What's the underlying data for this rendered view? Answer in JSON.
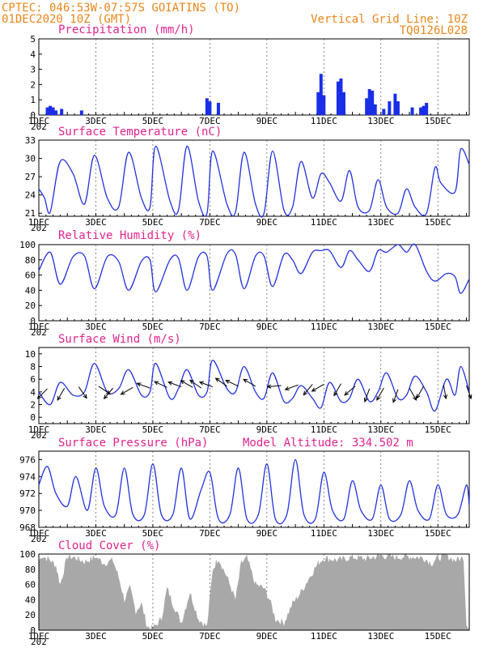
{
  "header": {
    "line1": "CPTEC:   046:53W-07:57S   GOIATINS (TO)",
    "line2": "01DEC2020 10Z (GMT)",
    "right1": "Vertical Grid Line: 10Z",
    "right2": "TQ0126L028"
  },
  "x_axis": {
    "tick_labels": [
      "1DEC",
      "3DEC",
      "5DEC",
      "7DEC",
      "9DEC",
      "11DEC",
      "13DEC",
      "15DEC"
    ],
    "tick_days": [
      1,
      3,
      5,
      7,
      9,
      11,
      13,
      15
    ],
    "range": [
      1,
      16.1
    ],
    "year_stub": "202"
  },
  "colors": {
    "line": "#2233dd",
    "bars": "#1a2ee8",
    "cloud": "#a8a8a8",
    "header": "#e8861a",
    "title": "#e0238f",
    "grid": "#000000"
  },
  "chart_data": [
    {
      "type": "bar",
      "title": "Precipitation (mm/h)",
      "ylim": [
        0,
        5
      ],
      "yticks": [
        "0",
        "1",
        "2",
        "3",
        "4",
        "5"
      ],
      "x": [
        1.3,
        1.4,
        1.5,
        1.6,
        1.8,
        2.5,
        6.9,
        7.0,
        7.3,
        10.8,
        10.9,
        11.0,
        11.5,
        11.6,
        11.7,
        12.5,
        12.6,
        12.7,
        12.8,
        13.1,
        13.3,
        13.5,
        13.6,
        14.1,
        14.4,
        14.5,
        14.6
      ],
      "values": [
        0.5,
        0.6,
        0.5,
        0.3,
        0.4,
        0.3,
        1.1,
        0.9,
        0.8,
        1.5,
        2.7,
        1.3,
        2.2,
        2.4,
        1.5,
        1.1,
        1.7,
        1.6,
        0.7,
        0.4,
        0.9,
        1.4,
        0.9,
        0.5,
        0.5,
        0.6,
        0.8
      ]
    },
    {
      "type": "line",
      "title": "Surface Temperature (nC)",
      "ylim": [
        20.5,
        33
      ],
      "yticks": [
        "21",
        "24",
        "27",
        "30",
        "33"
      ],
      "x": [
        1.0,
        1.2,
        1.4,
        1.75,
        2.2,
        2.6,
        2.95,
        3.4,
        3.8,
        4.15,
        4.6,
        4.9,
        5.1,
        5.6,
        5.9,
        6.2,
        6.6,
        6.9,
        7.1,
        7.6,
        7.9,
        8.2,
        8.6,
        8.9,
        9.2,
        9.6,
        9.9,
        10.2,
        10.6,
        10.9,
        11.2,
        11.6,
        11.9,
        12.2,
        12.6,
        12.9,
        13.2,
        13.6,
        13.9,
        14.2,
        14.6,
        14.9,
        15.1,
        15.6,
        15.8,
        16.1
      ],
      "values": [
        25.0,
        23.5,
        21.2,
        29.5,
        27.5,
        22.5,
        30.5,
        23.5,
        22.0,
        31.0,
        23.5,
        22.0,
        32.0,
        23.0,
        21.5,
        32.0,
        23.0,
        21.0,
        31.2,
        22.5,
        21.2,
        31.0,
        22.5,
        21.0,
        31.2,
        21.5,
        22.0,
        29.5,
        23.5,
        27.5,
        26.0,
        23.0,
        28.0,
        22.0,
        21.5,
        26.5,
        22.0,
        21.0,
        25.0,
        22.0,
        21.0,
        28.5,
        26.0,
        24.5,
        31.5,
        29.0
      ]
    },
    {
      "type": "line",
      "title": "Relative Humidity (%)",
      "ylim": [
        0,
        100
      ],
      "yticks": [
        "0",
        "20",
        "40",
        "60",
        "80",
        "100"
      ],
      "x": [
        1.0,
        1.4,
        1.75,
        2.2,
        2.6,
        2.95,
        3.4,
        3.8,
        4.15,
        4.6,
        4.9,
        5.1,
        5.6,
        5.9,
        6.2,
        6.6,
        6.9,
        7.1,
        7.6,
        7.9,
        8.2,
        8.6,
        8.9,
        9.2,
        9.6,
        9.9,
        10.2,
        10.6,
        10.9,
        11.2,
        11.6,
        11.9,
        12.2,
        12.6,
        12.9,
        13.2,
        13.6,
        13.9,
        14.2,
        14.6,
        14.9,
        15.3,
        15.6,
        15.8,
        16.1
      ],
      "values": [
        66,
        90,
        48,
        84,
        85,
        42,
        84,
        78,
        40,
        78,
        80,
        38,
        80,
        82,
        40,
        84,
        85,
        40,
        88,
        87,
        42,
        85,
        85,
        45,
        87,
        80,
        62,
        90,
        92,
        92,
        70,
        92,
        80,
        65,
        92,
        90,
        100,
        90,
        100,
        65,
        52,
        62,
        58,
        36,
        55
      ]
    },
    {
      "type": "line",
      "title": "Surface Wind (m/s)",
      "ylim": [
        -1,
        11
      ],
      "yticks": [
        "0",
        "2",
        "4",
        "6",
        "8",
        "10"
      ],
      "x": [
        1.0,
        1.4,
        1.75,
        2.2,
        2.6,
        2.95,
        3.4,
        3.8,
        4.15,
        4.6,
        4.9,
        5.1,
        5.6,
        5.9,
        6.2,
        6.6,
        6.9,
        7.1,
        7.6,
        7.9,
        8.2,
        8.6,
        8.9,
        9.2,
        9.6,
        9.9,
        10.2,
        10.6,
        10.9,
        11.2,
        11.6,
        11.9,
        12.2,
        12.6,
        12.9,
        13.2,
        13.6,
        13.9,
        14.2,
        14.6,
        14.9,
        15.3,
        15.6,
        15.8,
        16.1
      ],
      "values": [
        4.0,
        2.0,
        5.5,
        3.5,
        4.0,
        8.5,
        4.0,
        4.5,
        7.5,
        3.5,
        4.0,
        8.5,
        3.0,
        4.5,
        7.5,
        3.5,
        4.0,
        9.0,
        4.5,
        4.0,
        8.0,
        4.0,
        3.0,
        7.0,
        2.5,
        3.0,
        5.0,
        3.0,
        1.5,
        5.5,
        2.5,
        3.0,
        6.0,
        2.5,
        4.0,
        7.0,
        3.0,
        3.5,
        6.5,
        4.0,
        1.0,
        6.0,
        3.5,
        8.0,
        4.0
      ],
      "barbs": [
        [
          1.3,
          4.5,
          135
        ],
        [
          1.9,
          4.6,
          120
        ],
        [
          2.4,
          4.8,
          55
        ],
        [
          3.1,
          4.9,
          35
        ],
        [
          3.6,
          4.6,
          130
        ],
        [
          4.3,
          4.7,
          150
        ],
        [
          4.9,
          4.6,
          200
        ],
        [
          5.5,
          4.7,
          205
        ],
        [
          6.0,
          4.8,
          200
        ],
        [
          6.4,
          4.7,
          210
        ],
        [
          6.7,
          4.6,
          215
        ],
        [
          7.1,
          4.8,
          200
        ],
        [
          7.6,
          4.9,
          215
        ],
        [
          8.0,
          4.9,
          205
        ],
        [
          8.6,
          4.9,
          210
        ],
        [
          9.5,
          5.0,
          175
        ],
        [
          10.1,
          5.1,
          160
        ],
        [
          10.6,
          5.2,
          130
        ],
        [
          11.0,
          5.2,
          150
        ],
        [
          11.6,
          5.3,
          120
        ],
        [
          12.1,
          4.9,
          140
        ],
        [
          12.6,
          4.5,
          110
        ],
        [
          13.1,
          4.6,
          120
        ],
        [
          13.6,
          4.4,
          110
        ],
        [
          14.0,
          4.6,
          60
        ],
        [
          14.5,
          4.9,
          120
        ],
        [
          15.2,
          5.1,
          80
        ],
        [
          16.0,
          5.0,
          70
        ]
      ]
    },
    {
      "type": "line",
      "title": "Surface Pressure (hPa)",
      "annotation": "Model Altitude: 334.502 m",
      "ylim": [
        968,
        977
      ],
      "yticks": [
        "968",
        "970",
        "972",
        "974",
        "976"
      ],
      "x": [
        1.0,
        1.3,
        1.6,
        2.0,
        2.3,
        2.7,
        3.0,
        3.3,
        3.7,
        4.0,
        4.3,
        4.7,
        5.0,
        5.3,
        5.7,
        6.0,
        6.3,
        6.7,
        7.0,
        7.3,
        7.7,
        8.0,
        8.3,
        8.7,
        9.0,
        9.3,
        9.7,
        10.0,
        10.3,
        10.7,
        11.0,
        11.3,
        11.7,
        12.0,
        12.3,
        12.7,
        13.0,
        13.3,
        13.7,
        14.0,
        14.3,
        14.7,
        15.0,
        15.3,
        15.7,
        16.0,
        16.1
      ],
      "values": [
        973.0,
        975.2,
        972.0,
        970.5,
        974.0,
        970.0,
        975.0,
        970.5,
        969.5,
        975.0,
        969.5,
        969.5,
        975.5,
        969.5,
        969.5,
        975.0,
        969.0,
        972.5,
        974.5,
        969.0,
        969.5,
        975.0,
        969.0,
        969.5,
        975.5,
        969.0,
        969.5,
        976.0,
        969.5,
        969.0,
        974.5,
        970.0,
        969.0,
        973.5,
        970.0,
        969.0,
        973.0,
        969.0,
        969.5,
        973.5,
        970.0,
        969.0,
        973.0,
        969.5,
        969.5,
        973.0,
        970.5
      ]
    },
    {
      "type": "area",
      "title": "Cloud Cover (%)",
      "ylim": [
        0,
        100
      ],
      "yticks": [
        "0",
        "20",
        "40",
        "60",
        "80",
        "100"
      ],
      "x": [
        1.0,
        1.1,
        1.4,
        1.6,
        1.75,
        2.0,
        2.3,
        2.6,
        3.0,
        3.3,
        3.6,
        3.8,
        4.0,
        4.2,
        4.4,
        4.6,
        4.8,
        5.0,
        5.3,
        5.5,
        5.7,
        6.0,
        6.3,
        6.6,
        6.9,
        7.1,
        7.3,
        7.6,
        7.9,
        8.1,
        8.3,
        8.6,
        8.9,
        9.1,
        9.3,
        9.6,
        9.9,
        10.2,
        10.5,
        10.8,
        11.0,
        11.5,
        12.0,
        12.5,
        13.0,
        13.5,
        14.0,
        14.5,
        14.8,
        15.0,
        15.3,
        15.6,
        15.9,
        16.0,
        16.1
      ],
      "values": [
        90,
        98,
        92,
        85,
        60,
        97,
        95,
        90,
        96,
        88,
        92,
        70,
        40,
        55,
        25,
        35,
        5,
        2,
        15,
        55,
        35,
        10,
        50,
        15,
        5,
        80,
        95,
        70,
        40,
        88,
        95,
        60,
        55,
        40,
        15,
        10,
        35,
        50,
        70,
        88,
        95,
        92,
        96,
        94,
        98,
        96,
        97,
        95,
        88,
        95,
        98,
        92,
        95,
        10,
        0
      ]
    }
  ]
}
